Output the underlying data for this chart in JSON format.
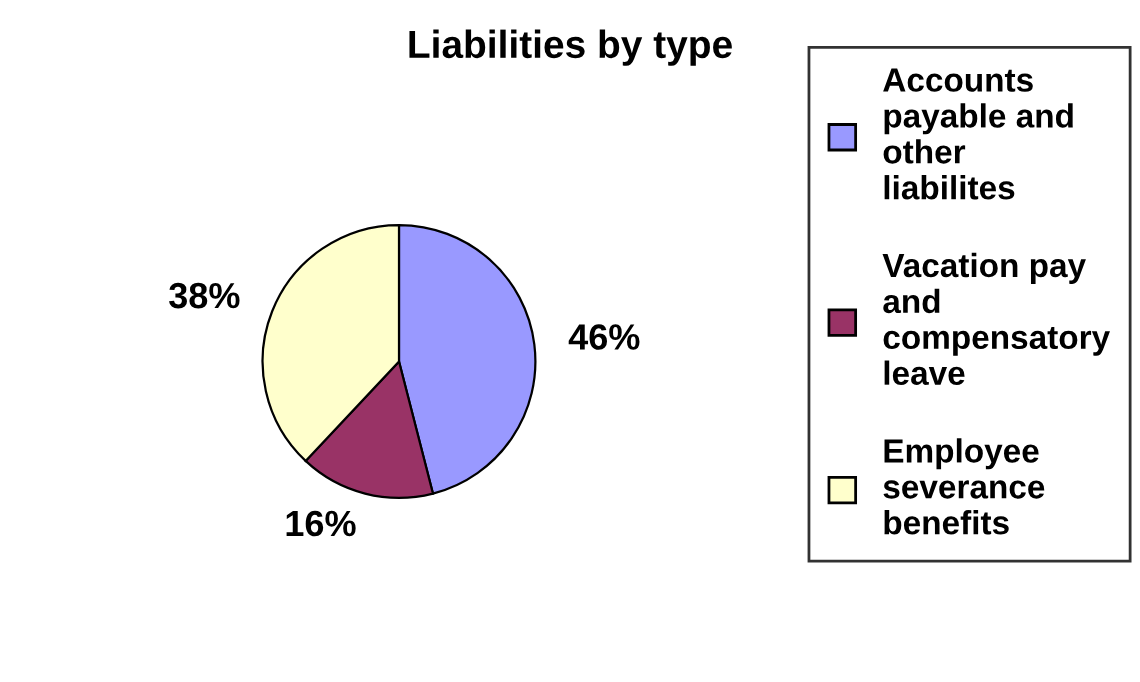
{
  "chart_data": {
    "type": "pie",
    "title": "Liabilities by type",
    "categories": [
      "Accounts payable and other liabilites",
      "Vacation pay and compensatory leave",
      "Employee severance benefits"
    ],
    "values": [
      46,
      16,
      38
    ],
    "colors": [
      "#9999ff",
      "#993366",
      "#ffffcc"
    ],
    "value_labels": [
      "46%",
      "16%",
      "38%"
    ],
    "legend": "right"
  }
}
